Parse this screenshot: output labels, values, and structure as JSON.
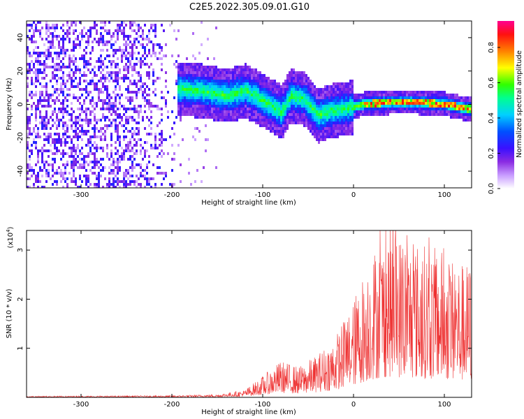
{
  "title": "C2E5.2022.305.09.01.G10",
  "colors": {
    "snr_line": "#ee3030",
    "colormap": [
      "#ffffff",
      "#d8b8ff",
      "#8a2be2",
      "#4b00ff",
      "#0050ff",
      "#00e0ff",
      "#00ff80",
      "#40ff00",
      "#ffff00",
      "#ff8000",
      "#ff2020",
      "#ff0080"
    ]
  },
  "chart_data": [
    {
      "type": "heatmap",
      "xlabel": "Height of straight line (km)",
      "ylabel": "Frequency (Hz)",
      "xlim": [
        -360,
        130
      ],
      "ylim": [
        -50,
        50
      ],
      "xticks": [
        -300,
        -200,
        -100,
        0,
        100
      ],
      "yticks": [
        -40,
        -20,
        0,
        20,
        40
      ],
      "colorbar": {
        "label": "Normalized spectral amplitude",
        "range": [
          0,
          0.95
        ],
        "ticks": [
          0.0,
          0.2,
          0.4,
          0.6,
          0.8
        ]
      },
      "ridge": {
        "start_x": -195,
        "points": [
          [
            -195,
            10
          ],
          [
            -170,
            9
          ],
          [
            -140,
            6
          ],
          [
            -120,
            9
          ],
          [
            -100,
            3
          ],
          [
            -80,
            -4
          ],
          [
            -70,
            6
          ],
          [
            -55,
            4
          ],
          [
            -40,
            -6
          ],
          [
            -25,
            -3
          ],
          [
            -10,
            -2
          ],
          [
            10,
            1
          ],
          [
            40,
            2
          ],
          [
            70,
            2
          ],
          [
            100,
            1
          ],
          [
            125,
            -2
          ]
        ]
      }
    },
    {
      "type": "line",
      "xlabel": "Height of straight line (km)",
      "ylabel": "SNR (10 * v/v)",
      "multiplier": "(x10^4)",
      "multiplier_base": "(x10",
      "multiplier_exp": "4",
      "multiplier_close": ")",
      "xlim": [
        -360,
        130
      ],
      "ylim": [
        0,
        3.4
      ],
      "xticks": [
        -300,
        -200,
        -100,
        0,
        100
      ],
      "yticks": [
        1,
        2,
        3
      ],
      "envelope": [
        [
          -360,
          0.02
        ],
        [
          -200,
          0.03
        ],
        [
          -150,
          0.05
        ],
        [
          -120,
          0.12
        ],
        [
          -100,
          0.35
        ],
        [
          -80,
          0.6
        ],
        [
          -60,
          0.5
        ],
        [
          -40,
          0.7
        ],
        [
          -20,
          1.0
        ],
        [
          0,
          1.6
        ],
        [
          20,
          2.4
        ],
        [
          40,
          2.8
        ],
        [
          60,
          2.6
        ],
        [
          80,
          2.5
        ],
        [
          100,
          2.4
        ],
        [
          120,
          2.2
        ],
        [
          130,
          2.2
        ]
      ]
    }
  ]
}
